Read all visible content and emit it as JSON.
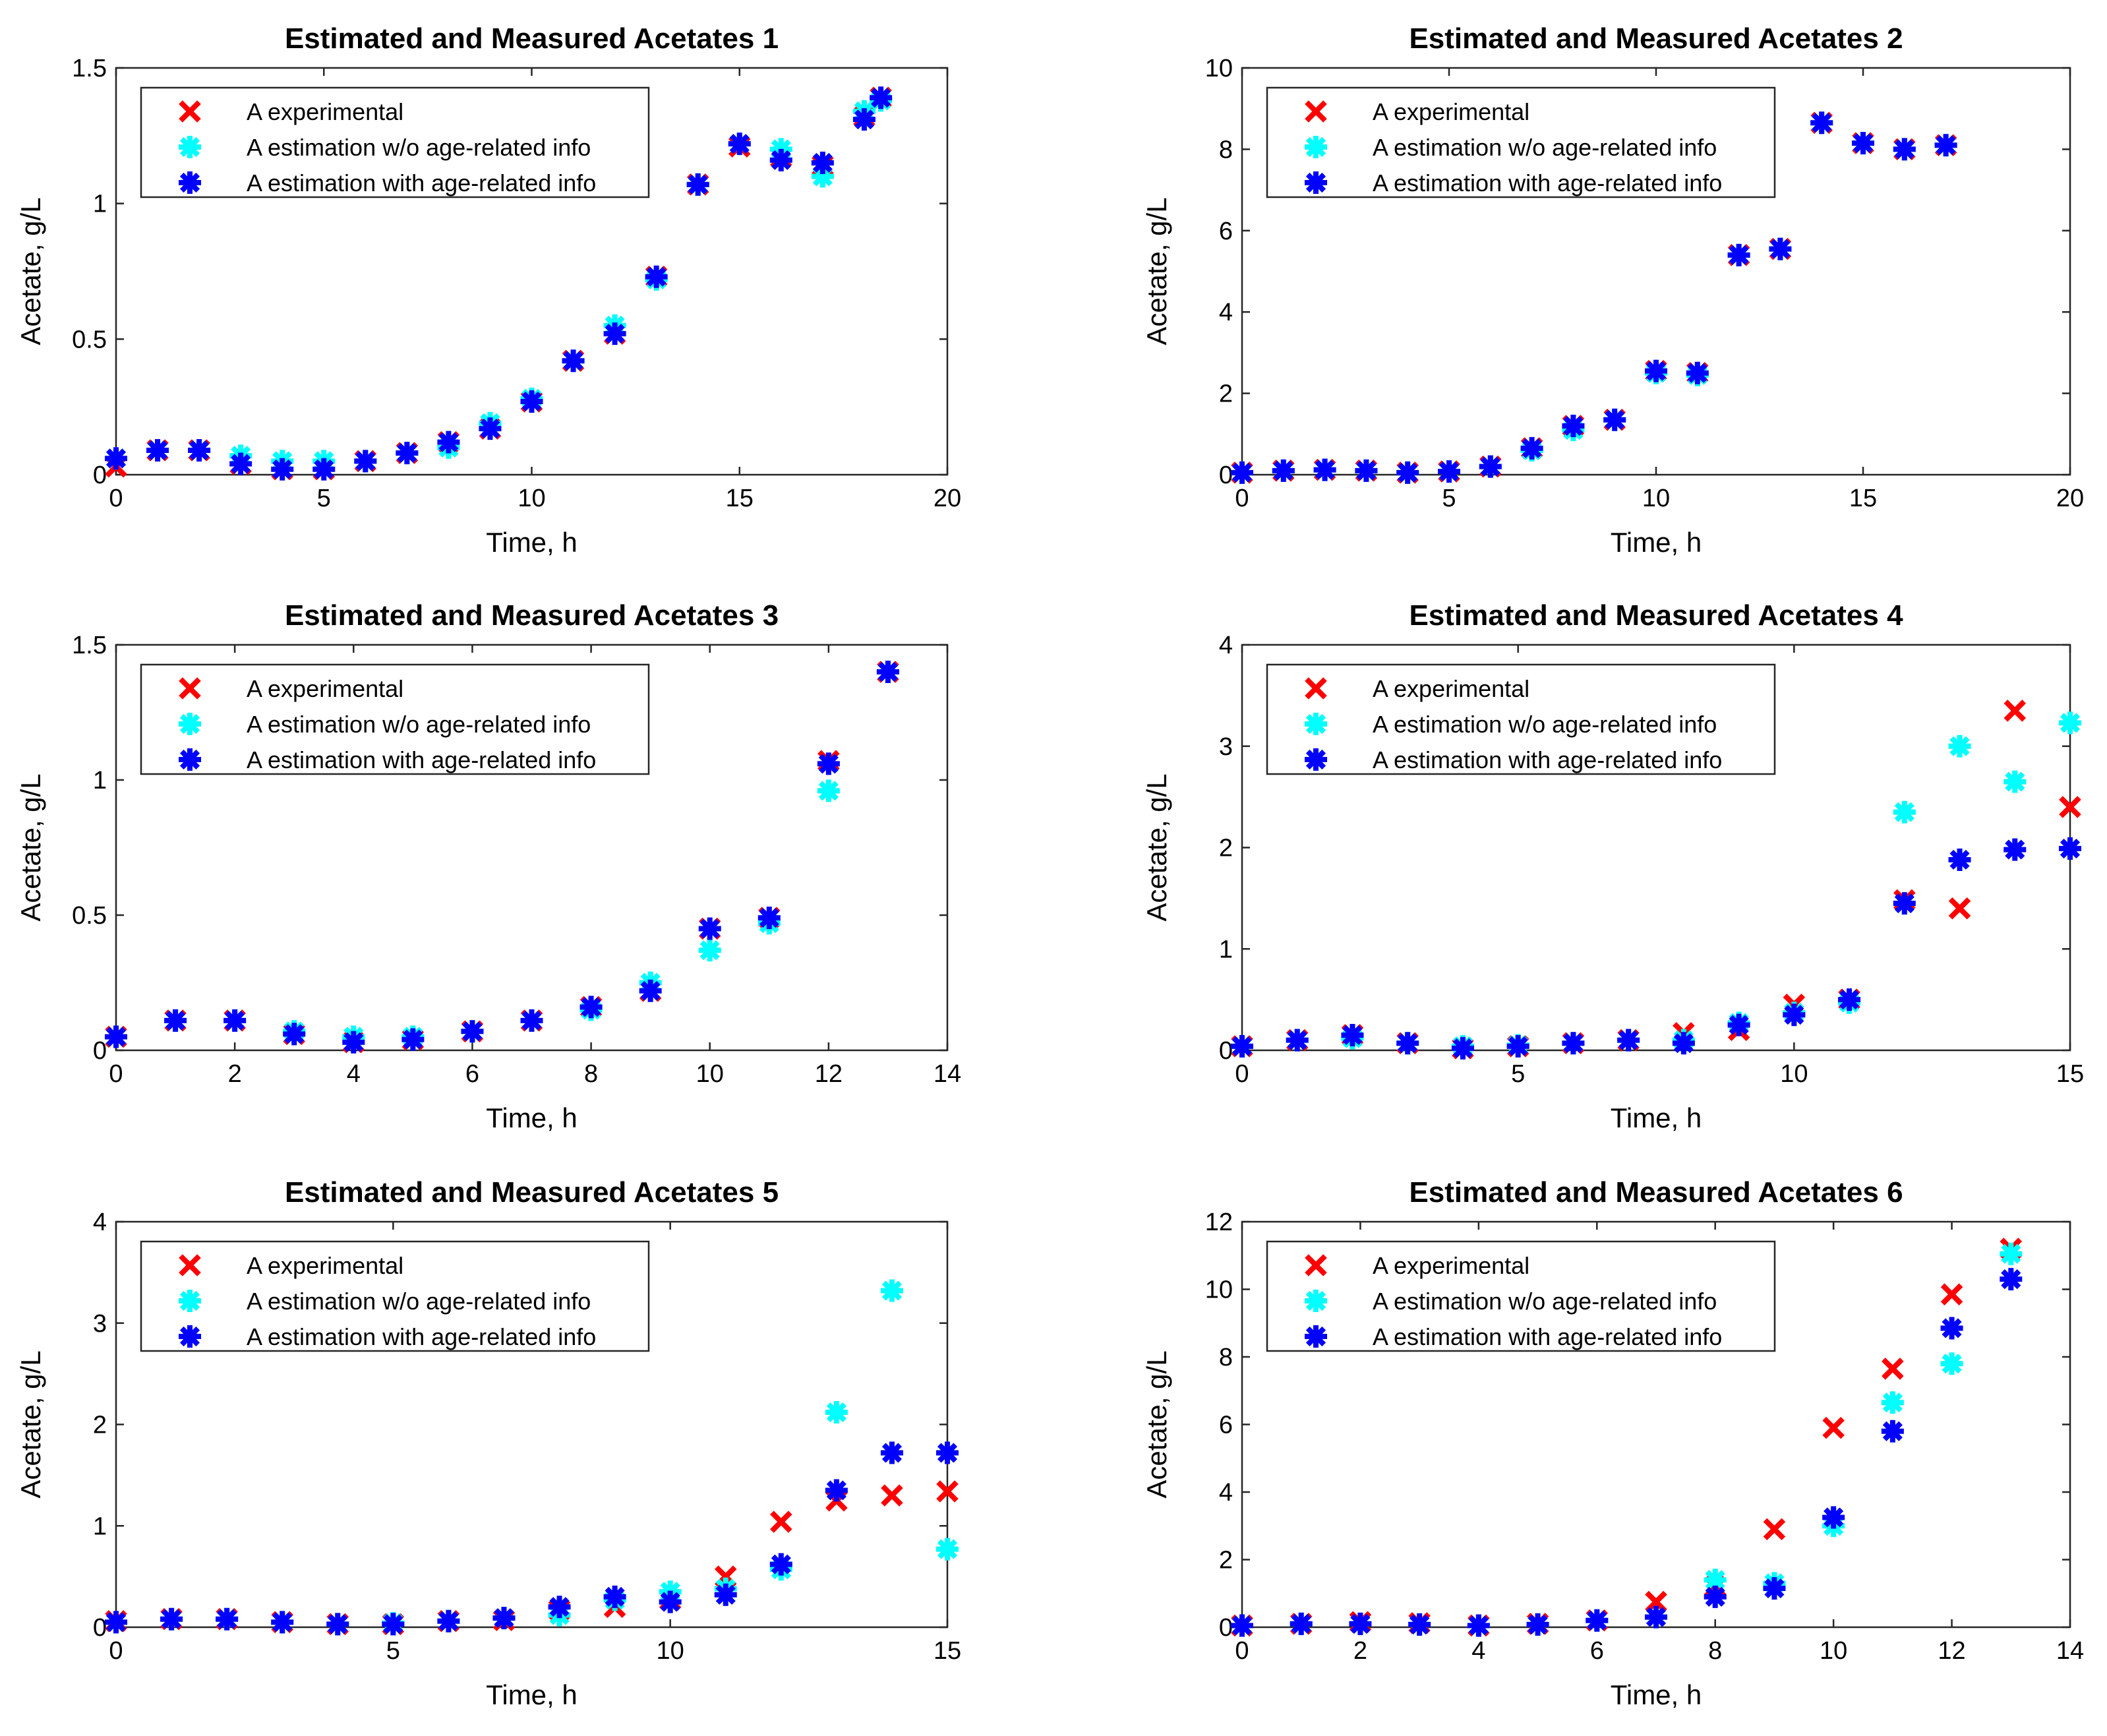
{
  "legend_labels": [
    "A experimental",
    "A estimation w/o age-related info",
    "A estimation with age-related info"
  ],
  "series_colors": [
    "#ff0000",
    "#00ffff",
    "#0000ff"
  ],
  "series_markers": [
    "x",
    "asterisk",
    "asterisk"
  ],
  "chart_data": [
    {
      "type": "scatter",
      "title": "Estimated and Measured Acetates 1",
      "xlabel": "Time, h",
      "ylabel": "Acetate, g/L",
      "xlim": [
        0,
        20
      ],
      "ylim": [
        0,
        1.5
      ],
      "xticks": [
        0,
        5,
        10,
        15,
        20
      ],
      "yticks": [
        0,
        0.5,
        1,
        1.5
      ],
      "xtick_labels": [
        "0",
        "5",
        "10",
        "15",
        "20"
      ],
      "ytick_labels": [
        "0",
        "0.5",
        "1",
        "1.5"
      ],
      "legend_position": "top-left",
      "x": [
        0,
        1,
        2,
        3,
        4,
        5,
        6,
        7,
        8,
        9,
        10,
        11,
        12,
        13,
        14,
        15,
        16,
        17,
        18,
        18.4
      ],
      "series": [
        {
          "name": "A experimental",
          "values": [
            0.03,
            0.09,
            0.09,
            0.04,
            0.02,
            0.02,
            0.05,
            0.08,
            0.12,
            0.17,
            0.27,
            0.42,
            0.52,
            0.73,
            1.07,
            1.21,
            1.17,
            1.14,
            1.32,
            1.39
          ]
        },
        {
          "name": "A estimation w/o age-related info",
          "values": [
            0.06,
            0.09,
            0.09,
            0.07,
            0.05,
            0.05,
            0.05,
            0.08,
            0.1,
            0.19,
            0.28,
            0.42,
            0.55,
            0.72,
            1.07,
            1.22,
            1.2,
            1.1,
            1.34,
            1.38
          ]
        },
        {
          "name": "A estimation with age-related info",
          "values": [
            0.06,
            0.09,
            0.09,
            0.04,
            0.02,
            0.02,
            0.05,
            0.08,
            0.12,
            0.17,
            0.27,
            0.42,
            0.52,
            0.73,
            1.07,
            1.22,
            1.16,
            1.15,
            1.31,
            1.39
          ]
        }
      ]
    },
    {
      "type": "scatter",
      "title": "Estimated and Measured Acetates 2",
      "xlabel": "Time, h",
      "ylabel": "Acetate, g/L",
      "xlim": [
        0,
        20
      ],
      "ylim": [
        0,
        10
      ],
      "xticks": [
        0,
        5,
        10,
        15,
        20
      ],
      "yticks": [
        0,
        2,
        4,
        6,
        8,
        10
      ],
      "xtick_labels": [
        "0",
        "5",
        "10",
        "15",
        "20"
      ],
      "ytick_labels": [
        "0",
        "2",
        "4",
        "6",
        "8",
        "10"
      ],
      "legend_position": "top-left",
      "x": [
        0,
        1,
        2,
        3,
        4,
        5,
        6,
        7,
        8,
        9,
        10,
        11,
        12,
        13,
        14,
        15,
        16,
        17
      ],
      "series": [
        {
          "name": "A experimental",
          "values": [
            0.05,
            0.1,
            0.12,
            0.1,
            0.05,
            0.08,
            0.2,
            0.65,
            1.2,
            1.35,
            2.55,
            2.5,
            5.4,
            5.55,
            8.65,
            8.15,
            8.0,
            8.1
          ]
        },
        {
          "name": "A estimation w/o age-related info",
          "values": [
            0.05,
            0.1,
            0.12,
            0.1,
            0.05,
            0.08,
            0.2,
            0.6,
            1.1,
            1.35,
            2.5,
            2.45,
            5.4,
            5.55,
            8.65,
            8.15,
            8.0,
            8.1
          ]
        },
        {
          "name": "A estimation with age-related info",
          "values": [
            0.05,
            0.1,
            0.12,
            0.1,
            0.05,
            0.08,
            0.2,
            0.65,
            1.2,
            1.35,
            2.55,
            2.5,
            5.4,
            5.55,
            8.65,
            8.15,
            8.0,
            8.1
          ]
        }
      ]
    },
    {
      "type": "scatter",
      "title": "Estimated and Measured Acetates 3",
      "xlabel": "Time, h",
      "ylabel": "Acetate, g/L",
      "xlim": [
        0,
        14
      ],
      "ylim": [
        0,
        1.5
      ],
      "xticks": [
        0,
        2,
        4,
        6,
        8,
        10,
        12,
        14
      ],
      "yticks": [
        0,
        0.5,
        1,
        1.5
      ],
      "xtick_labels": [
        "0",
        "2",
        "4",
        "6",
        "8",
        "10",
        "12",
        "14"
      ],
      "ytick_labels": [
        "0",
        "0.5",
        "1",
        "1.5"
      ],
      "legend_position": "top-left",
      "x": [
        0,
        1,
        2,
        3,
        4,
        5,
        6,
        7,
        8,
        9,
        10,
        11,
        12,
        13
      ],
      "series": [
        {
          "name": "A experimental",
          "values": [
            0.05,
            0.11,
            0.11,
            0.06,
            0.03,
            0.04,
            0.07,
            0.11,
            0.16,
            0.22,
            0.45,
            0.49,
            1.07,
            1.4
          ]
        },
        {
          "name": "A estimation w/o age-related info",
          "values": [
            0.05,
            0.11,
            0.11,
            0.07,
            0.05,
            0.05,
            0.07,
            0.11,
            0.15,
            0.25,
            0.37,
            0.47,
            0.96,
            1.4
          ]
        },
        {
          "name": "A estimation with age-related info",
          "values": [
            0.05,
            0.11,
            0.11,
            0.06,
            0.03,
            0.04,
            0.07,
            0.11,
            0.16,
            0.22,
            0.45,
            0.49,
            1.06,
            1.4
          ]
        }
      ]
    },
    {
      "type": "scatter",
      "title": "Estimated and Measured Acetates 4",
      "xlabel": "Time, h",
      "ylabel": "Acetate, g/L",
      "xlim": [
        0,
        15
      ],
      "ylim": [
        0,
        4
      ],
      "xticks": [
        0,
        5,
        10,
        15
      ],
      "yticks": [
        0,
        1,
        2,
        3,
        4
      ],
      "xtick_labels": [
        "0",
        "5",
        "10",
        "15"
      ],
      "ytick_labels": [
        "0",
        "1",
        "2",
        "3",
        "4"
      ],
      "legend_position": "top-left",
      "x": [
        0,
        1,
        2,
        3,
        4,
        5,
        6,
        7,
        8,
        9,
        10,
        11,
        12,
        13,
        14,
        15
      ],
      "series": [
        {
          "name": "A experimental",
          "values": [
            0.04,
            0.1,
            0.15,
            0.07,
            0.02,
            0.04,
            0.07,
            0.1,
            0.17,
            0.2,
            0.45,
            0.5,
            1.48,
            1.4,
            3.35,
            2.4
          ]
        },
        {
          "name": "A estimation w/o age-related info",
          "values": [
            0.04,
            0.1,
            0.12,
            0.07,
            0.04,
            0.05,
            0.07,
            0.1,
            0.1,
            0.27,
            0.37,
            0.47,
            2.35,
            3.0,
            2.65,
            3.23
          ]
        },
        {
          "name": "A estimation with age-related info",
          "values": [
            0.04,
            0.1,
            0.15,
            0.07,
            0.02,
            0.04,
            0.07,
            0.1,
            0.07,
            0.25,
            0.35,
            0.5,
            1.45,
            1.88,
            1.98,
            1.99
          ]
        }
      ]
    },
    {
      "type": "scatter",
      "title": "Estimated and Measured Acetates 5",
      "xlabel": "Time, h",
      "ylabel": "Acetate, g/L",
      "xlim": [
        0,
        15
      ],
      "ylim": [
        0,
        4
      ],
      "xticks": [
        0,
        5,
        10,
        15
      ],
      "yticks": [
        0,
        1,
        2,
        3,
        4
      ],
      "xtick_labels": [
        "0",
        "5",
        "10",
        "15"
      ],
      "ytick_labels": [
        "0",
        "1",
        "2",
        "3",
        "4"
      ],
      "legend_position": "top-left",
      "x": [
        0,
        1,
        2,
        3,
        4,
        5,
        6,
        7,
        8,
        9,
        10,
        11,
        12,
        13,
        14,
        15
      ],
      "series": [
        {
          "name": "A experimental",
          "values": [
            0.06,
            0.08,
            0.08,
            0.05,
            0.03,
            0.03,
            0.06,
            0.07,
            0.17,
            0.2,
            0.27,
            0.5,
            1.04,
            1.25,
            1.3,
            1.34
          ]
        },
        {
          "name": "A estimation w/o age-related info",
          "values": [
            0.05,
            0.08,
            0.08,
            0.05,
            0.03,
            0.04,
            0.06,
            0.09,
            0.12,
            0.27,
            0.35,
            0.38,
            0.57,
            2.12,
            3.32,
            0.77
          ]
        },
        {
          "name": "A estimation with age-related info",
          "values": [
            0.05,
            0.08,
            0.08,
            0.05,
            0.03,
            0.03,
            0.06,
            0.09,
            0.2,
            0.3,
            0.25,
            0.32,
            0.62,
            1.35,
            1.72,
            1.72
          ]
        }
      ]
    },
    {
      "type": "scatter",
      "title": "Estimated and Measured Acetates 6",
      "xlabel": "Time, h",
      "ylabel": "Acetate, g/L",
      "xlim": [
        0,
        14
      ],
      "ylim": [
        0,
        12
      ],
      "xticks": [
        0,
        2,
        4,
        6,
        8,
        10,
        12,
        14
      ],
      "yticks": [
        0,
        2,
        4,
        6,
        8,
        10,
        12
      ],
      "xtick_labels": [
        "0",
        "2",
        "4",
        "6",
        "8",
        "10",
        "12",
        "14"
      ],
      "ytick_labels": [
        "0",
        "2",
        "4",
        "6",
        "8",
        "10",
        "12"
      ],
      "legend_position": "top-left",
      "x": [
        0,
        1,
        2,
        3,
        4,
        5,
        6,
        7,
        8,
        9,
        10,
        11,
        12,
        13
      ],
      "series": [
        {
          "name": "A experimental",
          "values": [
            0.05,
            0.1,
            0.15,
            0.12,
            0.05,
            0.1,
            0.2,
            0.75,
            1.2,
            2.9,
            5.9,
            7.65,
            9.85,
            11.2
          ]
        },
        {
          "name": "A estimation w/o age-related info",
          "values": [
            0.05,
            0.1,
            0.1,
            0.08,
            0.05,
            0.08,
            0.2,
            0.3,
            1.4,
            1.3,
            3.0,
            6.65,
            7.8,
            11.05
          ]
        },
        {
          "name": "A estimation with age-related info",
          "values": [
            0.05,
            0.1,
            0.1,
            0.08,
            0.05,
            0.08,
            0.2,
            0.3,
            0.9,
            1.15,
            3.25,
            5.8,
            8.85,
            10.3
          ]
        }
      ]
    }
  ]
}
